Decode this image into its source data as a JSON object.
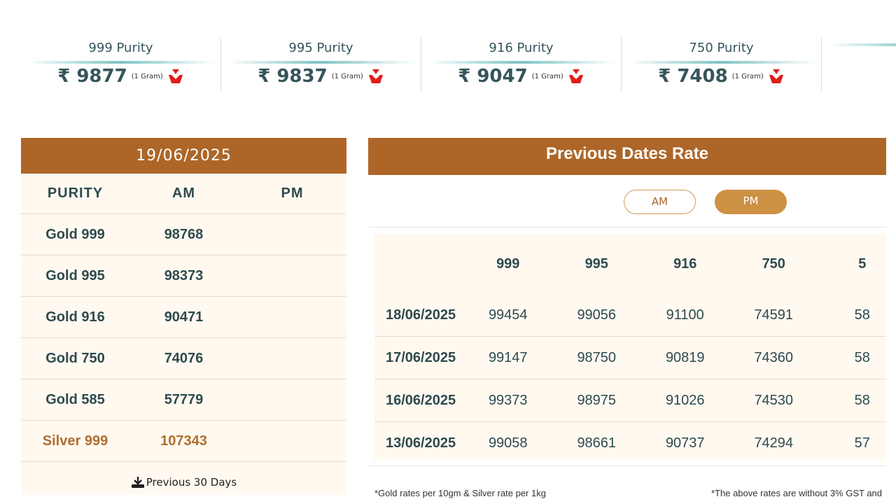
{
  "ticker": [
    {
      "name": "999 Purity",
      "price": "₹ 9877",
      "unit": "(1 Gram)",
      "trend": "down"
    },
    {
      "name": "995 Purity",
      "price": "₹ 9837",
      "unit": "(1 Gram)",
      "trend": "down"
    },
    {
      "name": "916 Purity",
      "price": "₹ 9047",
      "unit": "(1 Gram)",
      "trend": "down"
    },
    {
      "name": "750 Purity",
      "price": "₹ 7408",
      "unit": "(1 Gram)",
      "trend": "down"
    },
    {
      "name": "",
      "price": "₹",
      "unit": "",
      "trend": ""
    }
  ],
  "today": {
    "date": "19/06/2025",
    "headers": [
      "PURITY",
      "AM",
      "PM"
    ],
    "rows": [
      [
        "Gold 999",
        "98768",
        ""
      ],
      [
        "Gold 995",
        "98373",
        ""
      ],
      [
        "Gold 916",
        "90471",
        ""
      ],
      [
        "Gold 750",
        "74076",
        ""
      ],
      [
        "Gold 585",
        "57779",
        ""
      ],
      [
        "Silver 999",
        "107343",
        ""
      ]
    ],
    "download_label": "Previous 30 Days"
  },
  "previous": {
    "title": "Previous Dates Rate",
    "toggle": {
      "am": "AM",
      "pm": "PM",
      "selected": "PM"
    },
    "headers": [
      "",
      "999",
      "995",
      "916",
      "750",
      "5"
    ],
    "rows": [
      [
        "18/06/2025",
        "99454",
        "99056",
        "91100",
        "74591",
        "58"
      ],
      [
        "17/06/2025",
        "99147",
        "98750",
        "90819",
        "74360",
        "58"
      ],
      [
        "16/06/2025",
        "99373",
        "98975",
        "91026",
        "74530",
        "58"
      ],
      [
        "13/06/2025",
        "99058",
        "98661",
        "90737",
        "74294",
        "57"
      ]
    ],
    "note_left": "*Gold rates per 10gm & Silver rate per 1kg",
    "note_right": "*The above rates are without 3% GST and"
  },
  "colors": {
    "brand": "#ad6628",
    "accent": "#cd9143",
    "text": "#2e4a4f",
    "down": "#e21b1b"
  }
}
